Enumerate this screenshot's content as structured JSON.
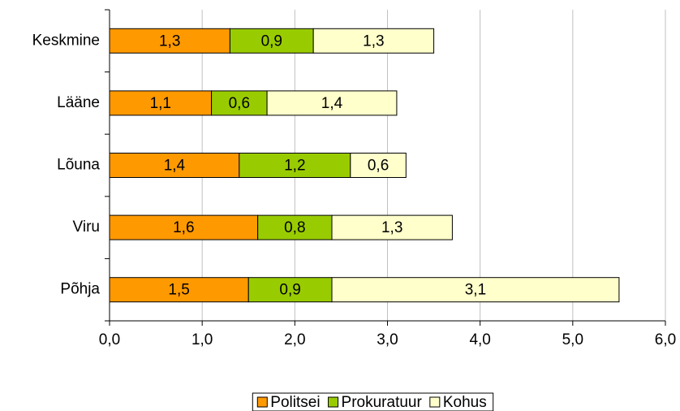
{
  "chart_data": {
    "type": "stacked-barh",
    "categories": [
      "Keskmine",
      "Lääne",
      "Lõuna",
      "Viru",
      "Põhja"
    ],
    "series": [
      {
        "name": "Politsei",
        "color": "#ff9900",
        "values": [
          1.3,
          1.1,
          1.4,
          1.6,
          1.5
        ],
        "value_labels": [
          "1,3",
          "1,1",
          "1,4",
          "1,6",
          "1,5"
        ]
      },
      {
        "name": "Prokuratuur",
        "color": "#99cc00",
        "values": [
          0.9,
          0.6,
          1.2,
          0.8,
          0.9
        ],
        "value_labels": [
          "0,9",
          "0,6",
          "1,2",
          "0,8",
          "0,9"
        ]
      },
      {
        "name": "Kohus",
        "color": "#ffffcc",
        "values": [
          1.3,
          1.4,
          0.6,
          1.3,
          3.1
        ],
        "value_labels": [
          "1,3",
          "1,4",
          "0,6",
          "1,3",
          "3,1"
        ]
      }
    ],
    "xlim": [
      0,
      6
    ],
    "xticks": [
      {
        "value": 0,
        "label": "0,0"
      },
      {
        "value": 1,
        "label": "1,0"
      },
      {
        "value": 2,
        "label": "2,0"
      },
      {
        "value": 3,
        "label": "3,0"
      },
      {
        "value": 4,
        "label": "4,0"
      },
      {
        "value": 5,
        "label": "5,0"
      },
      {
        "value": 6,
        "label": "6,0"
      }
    ],
    "grid": true,
    "legend": "bottom"
  }
}
